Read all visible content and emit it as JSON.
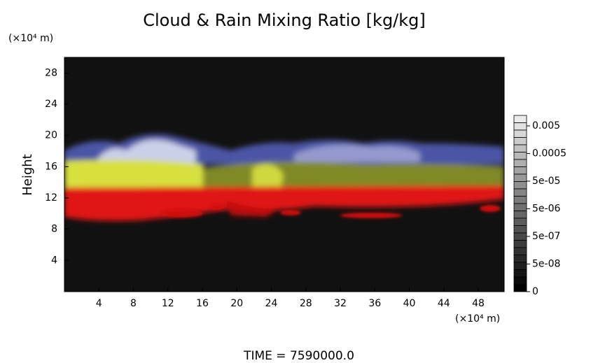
{
  "chart_data": {
    "type": "image",
    "title": "Cloud & Rain Mixing Ratio [kg/kg]",
    "y_unit_label": "(×10⁴ m)",
    "x_unit_label": "(×10⁴ m)",
    "y_label": "Height",
    "footer": "TIME = 7590000.0",
    "xlim": [
      0,
      51
    ],
    "xticks": [
      4,
      8,
      12,
      16,
      20,
      24,
      28,
      32,
      36,
      40,
      44,
      48
    ],
    "ylim": [
      0,
      30
    ],
    "yticks": [
      4,
      8,
      12,
      16,
      20,
      24,
      28
    ],
    "colorbar_ticks": [
      0.005,
      0.0005,
      {
        "value": 5e-05,
        "label": "5e-05"
      },
      {
        "value": 5e-06,
        "label": "5e-06"
      },
      {
        "value": 5e-07,
        "label": "5e-07"
      },
      {
        "value": 5e-08,
        "label": "5e-08"
      },
      0
    ]
  }
}
